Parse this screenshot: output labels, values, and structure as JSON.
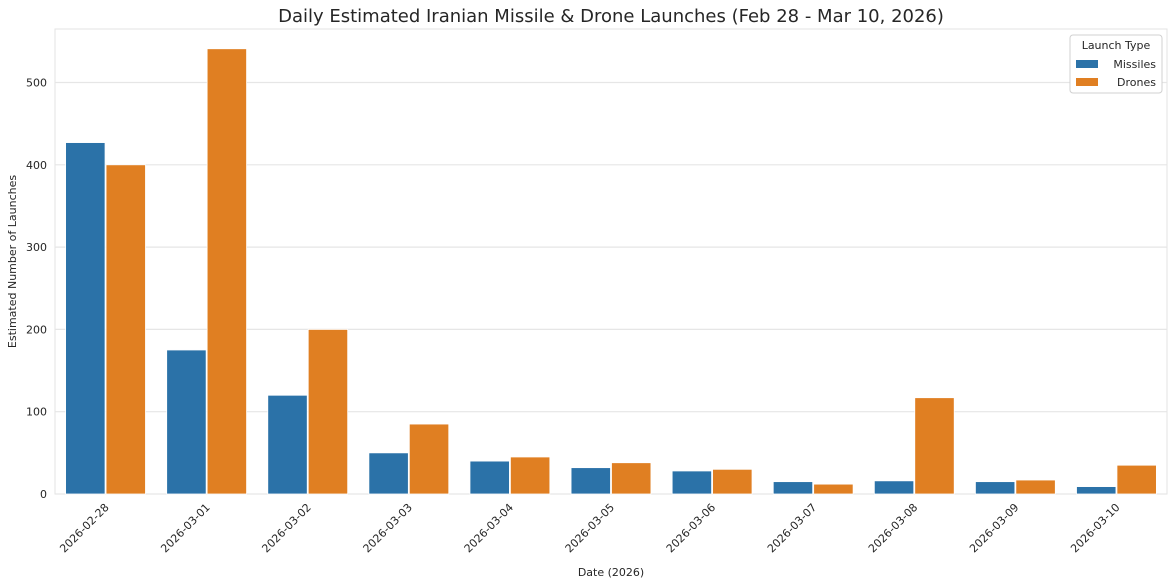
{
  "chart_data": {
    "type": "bar",
    "title": "Daily Estimated Iranian Missile & Drone Launches (Feb 28 - Mar 10, 2026)",
    "xlabel": "Date (2026)",
    "ylabel": "Estimated Number of Launches",
    "categories": [
      "2026-02-28",
      "2026-03-01",
      "2026-03-02",
      "2026-03-03",
      "2026-03-04",
      "2026-03-05",
      "2026-03-06",
      "2026-03-07",
      "2026-03-08",
      "2026-03-09",
      "2026-03-10"
    ],
    "series": [
      {
        "name": "Missiles",
        "color": "#2b72a8",
        "values": [
          427,
          175,
          120,
          50,
          40,
          32,
          28,
          15,
          16,
          15,
          9
        ]
      },
      {
        "name": "Drones",
        "color": "#e07f22",
        "values": [
          400,
          541,
          200,
          85,
          45,
          38,
          30,
          12,
          117,
          17,
          35
        ]
      }
    ],
    "ylim": [
      0,
      565
    ],
    "yticks": [
      0,
      100,
      200,
      300,
      400,
      500
    ],
    "grid": true,
    "legend": {
      "title": "Launch Type",
      "placement": "top-right"
    }
  }
}
